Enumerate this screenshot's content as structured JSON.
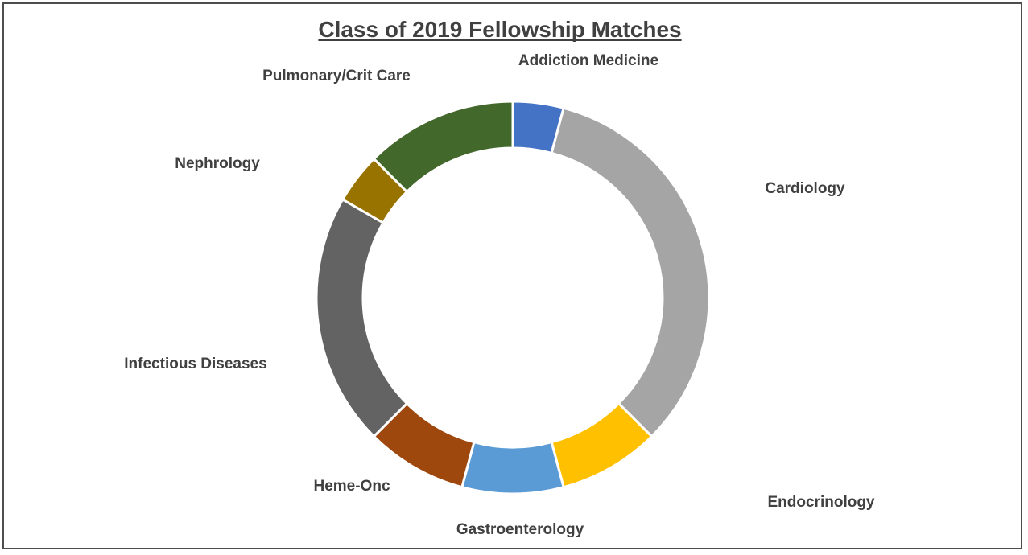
{
  "chart_data": {
    "type": "pie",
    "variant": "doughnut",
    "title": "Class of 2019 Fellowship Matches",
    "categories": [
      "Addiction Medicine",
      "Cardiology",
      "Endocrinology",
      "Gastroenterology",
      "Heme-Onc",
      "Infectious Diseases",
      "Nephrology",
      "Pulmonary/Crit Care"
    ],
    "values": [
      1,
      8,
      2,
      2,
      2,
      5,
      1,
      3
    ],
    "colors": [
      "#4472C4",
      "#A5A5A5",
      "#FFC000",
      "#5B9BD5",
      "#9E480E",
      "#636363",
      "#997300",
      "#43682B"
    ],
    "legend": "none"
  }
}
